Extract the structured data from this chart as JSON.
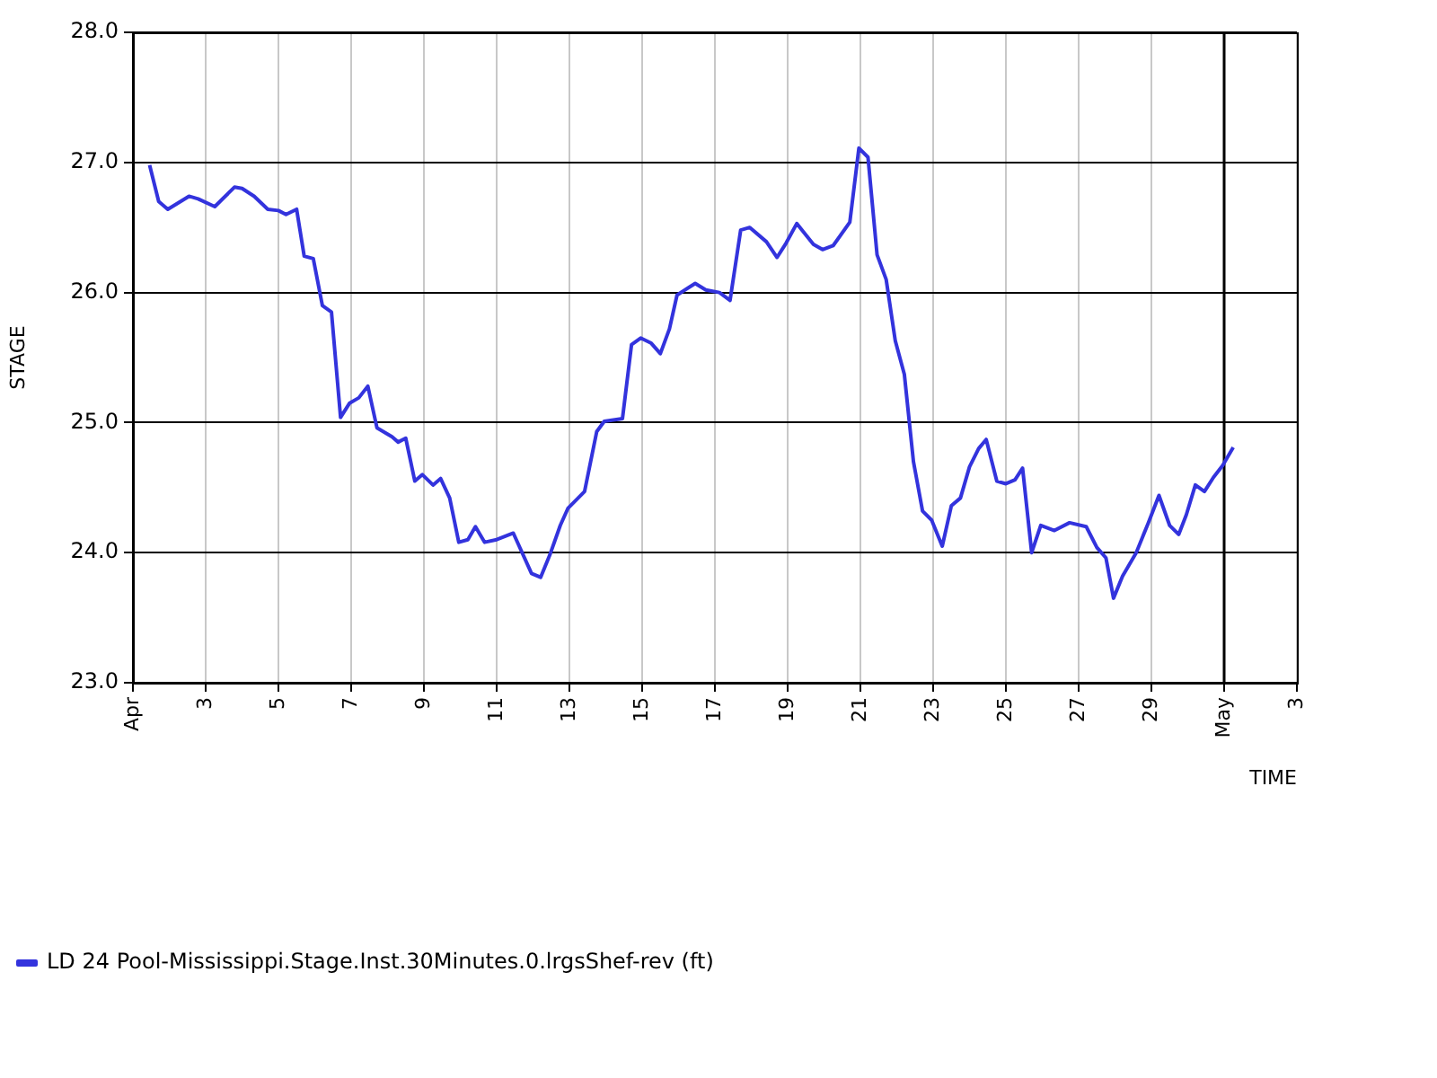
{
  "chart_data": {
    "type": "line",
    "xlabel": "TIME",
    "ylabel": "STAGE",
    "x": [
      "--04-01T11:00",
      "--04-01T17:00",
      "--04-01T23:00",
      "--04-02T13:00",
      "--04-02T19:00",
      "--04-03T06:00",
      "--04-03T19:00",
      "--04-04T00:00",
      "--04-04T08:00",
      "--04-04T17:00",
      "--04-05T00:00",
      "--04-05T05:00",
      "--04-05T12:00",
      "--04-05T17:00",
      "--04-05T23:00",
      "--04-06T05:00",
      "--04-06T11:00",
      "--04-06T17:00",
      "--04-06T23:00",
      "--04-07T05:00",
      "--04-07T11:00",
      "--04-07T17:00",
      "--04-08T03:00",
      "--04-08T07:00",
      "--04-08T12:00",
      "--04-08T18:00",
      "--04-08T23:00",
      "--04-09T06:00",
      "--04-09T11:00",
      "--04-09T17:00",
      "--04-09T23:00",
      "--04-10T05:00",
      "--04-10T10:00",
      "--04-10T16:00",
      "--04-11T00:00",
      "--04-11T11:00",
      "--04-11T23:00",
      "--04-12T05:00",
      "--04-12T11:00",
      "--04-12T18:00",
      "--04-12T23:00",
      "--04-13T10:00",
      "--04-13T18:00",
      "--04-13T23:00",
      "--04-14T11:00",
      "--04-14T17:00",
      "--04-14T23:00",
      "--04-15T06:00",
      "--04-15T12:00",
      "--04-15T18:00",
      "--04-15T23:00",
      "--04-16T11:00",
      "--04-16T18:00",
      "--04-17T03:00",
      "--04-17T10:00",
      "--04-17T17:00",
      "--04-17T23:00",
      "--04-18T10:00",
      "--04-18T17:00",
      "--04-18T23:00",
      "--04-19T06:00",
      "--04-19T17:00",
      "--04-19T23:00",
      "--04-20T06:00",
      "--04-20T17:00",
      "--04-20T23:00",
      "--04-21T05:00",
      "--04-21T11:00",
      "--04-21T17:00",
      "--04-21T23:00",
      "--04-22T05:00",
      "--04-22T11:00",
      "--04-22T17:00",
      "--04-22T23:00",
      "--04-23T06:00",
      "--04-23T12:00",
      "--04-23T18:00",
      "--04-24T00:00",
      "--04-24T06:00",
      "--04-24T11:00",
      "--04-24T18:00",
      "--04-25T00:00",
      "--04-25T06:00",
      "--04-25T11:00",
      "--04-25T17:00",
      "--04-25T23:00",
      "--04-26T08:00",
      "--04-26T18:00",
      "--04-27T05:00",
      "--04-27T12:00",
      "--04-27T18:00",
      "--04-27T23:00",
      "--04-28T05:00",
      "--04-28T14:00",
      "--04-28T22:00",
      "--04-29T05:00",
      "--04-29T12:00",
      "--04-29T18:00",
      "--04-29T23:00",
      "--04-30T05:00",
      "--04-30T11:00",
      "--04-30T17:00",
      "--04-30T23:00",
      "--05-01T06:00"
    ],
    "series": [
      {
        "name": "LD 24 Pool-Mississippi.Stage.Inst.30Minutes.0.lrgsShef-rev (ft)",
        "color": "#3333dd",
        "values": [
          26.98,
          26.7,
          26.64,
          26.74,
          26.72,
          26.66,
          26.81,
          26.8,
          26.74,
          26.64,
          26.63,
          26.6,
          26.64,
          26.28,
          26.26,
          25.9,
          25.85,
          25.04,
          25.15,
          25.19,
          25.28,
          24.96,
          24.89,
          24.85,
          24.88,
          24.55,
          24.6,
          24.52,
          24.57,
          24.42,
          24.08,
          24.1,
          24.2,
          24.08,
          24.1,
          24.15,
          23.84,
          23.81,
          23.98,
          24.21,
          24.34,
          24.47,
          24.93,
          25.01,
          25.03,
          25.6,
          25.65,
          25.61,
          25.53,
          25.72,
          25.98,
          26.07,
          26.02,
          26.0,
          25.94,
          26.48,
          26.5,
          26.39,
          26.27,
          26.38,
          26.53,
          26.37,
          26.33,
          26.36,
          26.54,
          27.11,
          27.04,
          26.29,
          26.1,
          25.63,
          25.37,
          24.7,
          24.32,
          24.25,
          24.05,
          24.36,
          24.42,
          24.66,
          24.8,
          24.87,
          24.55,
          24.53,
          24.56,
          24.65,
          24.0,
          24.21,
          24.17,
          24.23,
          24.2,
          24.04,
          23.96,
          23.65,
          23.82,
          24.0,
          24.23,
          24.44,
          24.21,
          24.14,
          24.29,
          24.52,
          24.47,
          24.58,
          24.67,
          24.81
        ]
      }
    ],
    "xlim": [
      "--04-01",
      "--05-03"
    ],
    "xticks": [
      {
        "value": "--04-01",
        "label": "Apr"
      },
      {
        "value": "--04-03",
        "label": "3"
      },
      {
        "value": "--04-05",
        "label": "5"
      },
      {
        "value": "--04-07",
        "label": "7"
      },
      {
        "value": "--04-09",
        "label": "9"
      },
      {
        "value": "--04-11",
        "label": "11"
      },
      {
        "value": "--04-13",
        "label": "13"
      },
      {
        "value": "--04-15",
        "label": "15"
      },
      {
        "value": "--04-17",
        "label": "17"
      },
      {
        "value": "--04-19",
        "label": "19"
      },
      {
        "value": "--04-21",
        "label": "21"
      },
      {
        "value": "--04-23",
        "label": "23"
      },
      {
        "value": "--04-25",
        "label": "25"
      },
      {
        "value": "--04-27",
        "label": "27"
      },
      {
        "value": "--04-29",
        "label": "29"
      },
      {
        "value": "--05-01",
        "label": "May"
      },
      {
        "value": "--05-03",
        "label": "3"
      }
    ],
    "ylim": [
      23,
      28
    ],
    "yticks": [
      {
        "value": 23,
        "label": "23.0"
      },
      {
        "value": 24,
        "label": "24.0"
      },
      {
        "value": 25,
        "label": "25.0"
      },
      {
        "value": 26,
        "label": "26.0"
      },
      {
        "value": 27,
        "label": "27.0"
      },
      {
        "value": 28,
        "label": "28.0"
      }
    ],
    "ref_lines": [
      {
        "axis": "x",
        "value": "--05-01",
        "color": "#000000"
      }
    ],
    "grid": true,
    "legend": "bottom left",
    "marker": "none",
    "line_style": "solid"
  }
}
